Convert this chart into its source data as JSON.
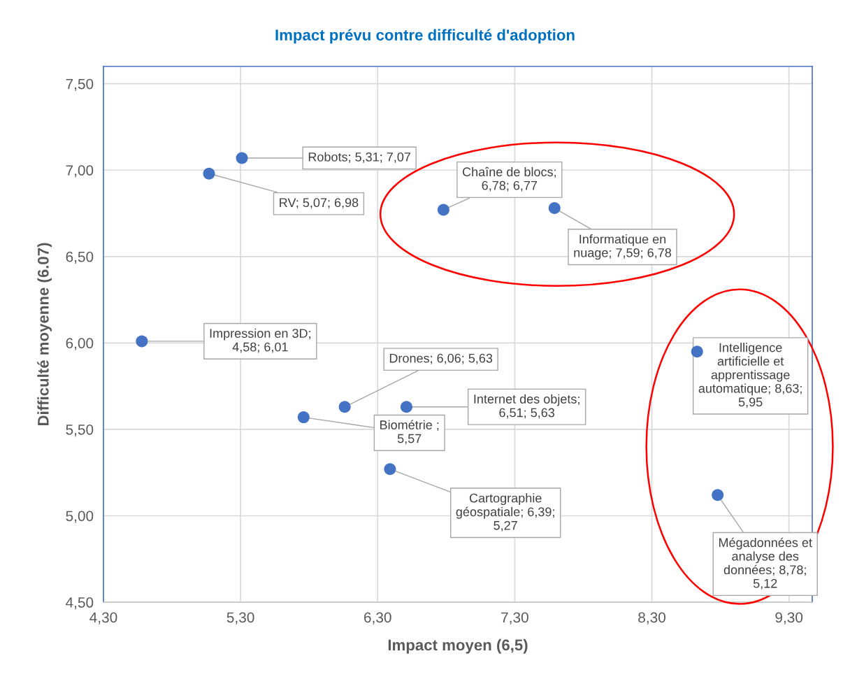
{
  "chart_data": {
    "type": "scatter",
    "title": "Impact prévu contre difficulté d'adoption",
    "xlabel": "Impact moyen (6,5)",
    "ylabel": "Difficulté moyenne (6.07)",
    "series": [
      {
        "color": "#4472c4",
        "x": [
          5.31,
          5.07,
          6.78,
          7.59,
          4.58,
          6.06,
          6.51,
          5.76,
          6.39,
          8.63,
          8.78
        ],
        "values": [
          7.07,
          6.98,
          6.77,
          6.78,
          6.01,
          5.63,
          5.63,
          5.57,
          5.27,
          5.95,
          5.12
        ],
        "value_labels": [
          "Robots; 5,31; 7,07",
          "RV; 5,07; 6,98",
          "Chaîne de blocs;\n6,78; 6,77",
          "Informatique en\nnuage; 7,59; 6,78",
          "Impression en 3D;\n4,58; 6,01",
          "Drones; 6,06; 5,63",
          "Internet des objets;\n6,51; 5,63",
          "Biométrie ;\n5,57",
          "Cartographie\ngéospatiale; 6,39;\n5,27",
          "Intelligence\nartificielle et\napprentissage\nautomatique; 8,63;\n5,95",
          "Mégadonnées et\nanalyse des\ndonnées; 8,78;\n5,12"
        ]
      }
    ],
    "xlim": [
      4.3,
      9.47
    ],
    "ylim": [
      4.5,
      7.6
    ],
    "xticks": [
      {
        "value": 4.3,
        "label": "4,30"
      },
      {
        "value": 5.3,
        "label": "5,30"
      },
      {
        "value": 6.3,
        "label": "6,30"
      },
      {
        "value": 7.3,
        "label": "7,30"
      },
      {
        "value": 8.3,
        "label": "8,30"
      },
      {
        "value": 9.3,
        "label": "9,30"
      }
    ],
    "yticks": [
      {
        "value": 4.5,
        "label": "4,50"
      },
      {
        "value": 5.0,
        "label": "5,00"
      },
      {
        "value": 5.5,
        "label": "5,50"
      },
      {
        "value": 6.0,
        "label": "6,00"
      },
      {
        "value": 6.5,
        "label": "6,50"
      },
      {
        "value": 7.0,
        "label": "7,00"
      },
      {
        "value": 7.5,
        "label": "7,50"
      }
    ],
    "grid": true,
    "legend": false,
    "marker": "circle"
  }
}
